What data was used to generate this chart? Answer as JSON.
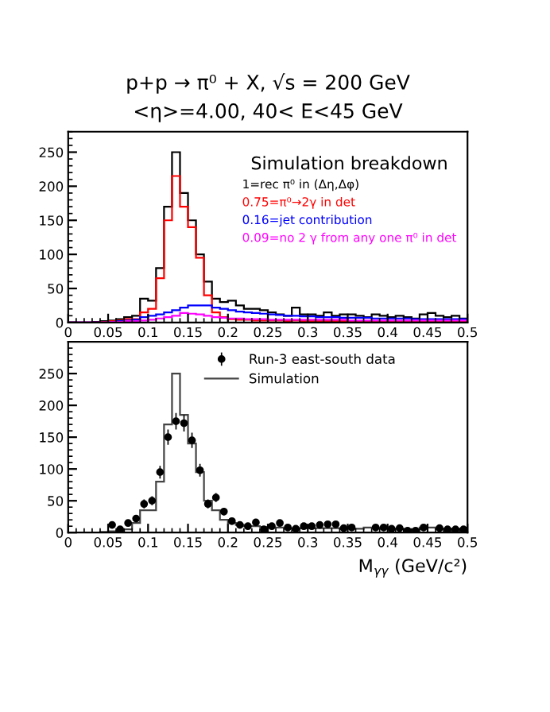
{
  "chart_data": [
    {
      "type": "histogram",
      "title": "p+p → π⁰ + X, √s = 200 GeV",
      "subtitle": "<η>=4.00, 40< E<45 GeV",
      "legend_title": "Simulation breakdown",
      "legend": "top right",
      "bins": [
        0,
        0.01,
        0.02,
        0.03,
        0.04,
        0.05,
        0.06,
        0.07,
        0.08,
        0.09,
        0.1,
        0.11,
        0.12,
        0.13,
        0.14,
        0.15,
        0.16,
        0.17,
        0.18,
        0.19,
        0.2,
        0.21,
        0.22,
        0.23,
        0.24,
        0.25,
        0.26,
        0.27,
        0.28,
        0.29,
        0.3,
        0.31,
        0.32,
        0.33,
        0.34,
        0.35,
        0.36,
        0.37,
        0.38,
        0.39,
        0.4,
        0.41,
        0.42,
        0.43,
        0.44,
        0.45,
        0.46,
        0.47,
        0.48,
        0.49,
        0.5
      ],
      "xlim": [
        0,
        0.5
      ],
      "xticks": [
        0,
        0.05,
        0.1,
        0.15,
        0.2,
        0.25,
        0.3,
        0.35,
        0.4,
        0.45,
        0.5
      ],
      "ylim": [
        0,
        280
      ],
      "yticks": [
        0,
        50,
        100,
        150,
        200,
        250
      ],
      "series": [
        {
          "name": "1=rec π⁰ in (Δη,Δφ)",
          "color": "#000000",
          "values": [
            0,
            0,
            0,
            1,
            2,
            3,
            5,
            8,
            10,
            35,
            32,
            80,
            170,
            250,
            190,
            150,
            100,
            60,
            35,
            30,
            32,
            25,
            20,
            20,
            18,
            15,
            12,
            10,
            22,
            12,
            12,
            10,
            15,
            10,
            12,
            12,
            10,
            8,
            12,
            10,
            8,
            10,
            8,
            6,
            12,
            14,
            10,
            8,
            10,
            6
          ]
        },
        {
          "name": "0.75=π⁰→2γ in det",
          "color": "#ff0000",
          "values": [
            0,
            0,
            0,
            0,
            1,
            2,
            3,
            5,
            5,
            15,
            20,
            65,
            150,
            215,
            170,
            140,
            95,
            40,
            15,
            8,
            5,
            4,
            4,
            3,
            3,
            3,
            3,
            2,
            3,
            2,
            2,
            2,
            2,
            2,
            2,
            2,
            2,
            2,
            2,
            2,
            2,
            2,
            2,
            2,
            2,
            2,
            2,
            2,
            2,
            2
          ]
        },
        {
          "name": "0.16=jet contribution",
          "color": "#0000ff",
          "values": [
            0,
            0,
            0,
            0,
            0,
            1,
            2,
            3,
            4,
            8,
            10,
            12,
            15,
            18,
            22,
            25,
            25,
            25,
            22,
            20,
            18,
            16,
            15,
            14,
            13,
            12,
            11,
            10,
            10,
            9,
            9,
            8,
            8,
            8,
            7,
            7,
            7,
            7,
            6,
            6,
            6,
            6,
            6,
            5,
            5,
            5,
            5,
            5,
            5,
            5
          ]
        },
        {
          "name": "0.09=no 2 γ from any one π⁰ in det",
          "color": "#ff00ff",
          "values": [
            0,
            0,
            0,
            0,
            0,
            1,
            1,
            2,
            2,
            3,
            4,
            6,
            8,
            10,
            14,
            13,
            12,
            10,
            8,
            7,
            6,
            6,
            5,
            5,
            5,
            4,
            4,
            4,
            4,
            4,
            4,
            4,
            4,
            4,
            4,
            3,
            3,
            3,
            3,
            3,
            3,
            3,
            3,
            3,
            3,
            3,
            3,
            3,
            3,
            3
          ]
        }
      ]
    },
    {
      "type": "histogram",
      "xlabel": "M$_{γγ}$ (GeV/c²)",
      "legend": "top right",
      "bins": [
        0,
        0.01,
        0.02,
        0.03,
        0.04,
        0.05,
        0.06,
        0.07,
        0.08,
        0.09,
        0.1,
        0.11,
        0.12,
        0.13,
        0.14,
        0.15,
        0.16,
        0.17,
        0.18,
        0.19,
        0.2,
        0.21,
        0.22,
        0.23,
        0.24,
        0.25,
        0.26,
        0.27,
        0.28,
        0.29,
        0.3,
        0.31,
        0.32,
        0.33,
        0.34,
        0.35,
        0.36,
        0.37,
        0.38,
        0.39,
        0.4,
        0.41,
        0.42,
        0.43,
        0.44,
        0.45,
        0.46,
        0.47,
        0.48,
        0.49,
        0.5
      ],
      "xlim": [
        0,
        0.5
      ],
      "xticks": [
        0,
        0.05,
        0.1,
        0.15,
        0.2,
        0.25,
        0.3,
        0.35,
        0.4,
        0.45,
        0.5
      ],
      "ylim": [
        0,
        300
      ],
      "yticks": [
        0,
        50,
        100,
        150,
        200,
        250
      ],
      "series": [
        {
          "name": "Simulation",
          "type": "histogram",
          "color": "#444444",
          "values": [
            0,
            0,
            0,
            0,
            1,
            2,
            3,
            5,
            15,
            35,
            35,
            80,
            170,
            250,
            185,
            140,
            95,
            50,
            35,
            20,
            15,
            12,
            10,
            10,
            9,
            8,
            8,
            7,
            7,
            7,
            7,
            7,
            7,
            7,
            6,
            6,
            6,
            8,
            8,
            6,
            6,
            6,
            5,
            5,
            8,
            8,
            6,
            6,
            6,
            5
          ]
        },
        {
          "name": "Run-3 east-south data",
          "type": "scatter",
          "color": "#000000",
          "marker": "circle",
          "x": [
            0.055,
            0.065,
            0.075,
            0.085,
            0.095,
            0.105,
            0.115,
            0.125,
            0.135,
            0.145,
            0.155,
            0.165,
            0.175,
            0.185,
            0.195,
            0.205,
            0.215,
            0.225,
            0.235,
            0.245,
            0.255,
            0.265,
            0.275,
            0.285,
            0.295,
            0.305,
            0.315,
            0.325,
            0.335,
            0.345,
            0.355,
            0.385,
            0.395,
            0.405,
            0.415,
            0.425,
            0.435,
            0.445,
            0.465,
            0.475,
            0.485,
            0.495
          ],
          "values": [
            12,
            5,
            15,
            22,
            45,
            50,
            95,
            150,
            175,
            172,
            145,
            98,
            45,
            55,
            33,
            18,
            12,
            10,
            16,
            5,
            10,
            15,
            8,
            6,
            10,
            10,
            12,
            13,
            13,
            7,
            8,
            8,
            8,
            6,
            7,
            3,
            3,
            8,
            7,
            5,
            5,
            5
          ],
          "errors": [
            3,
            2,
            4,
            5,
            7,
            7,
            10,
            12,
            13,
            13,
            12,
            10,
            7,
            7,
            6,
            4,
            3,
            3,
            4,
            2,
            3,
            4,
            3,
            2,
            3,
            3,
            3,
            4,
            4,
            3,
            3,
            3,
            3,
            2,
            3,
            2,
            2,
            3,
            3,
            2,
            2,
            2
          ]
        }
      ]
    }
  ]
}
